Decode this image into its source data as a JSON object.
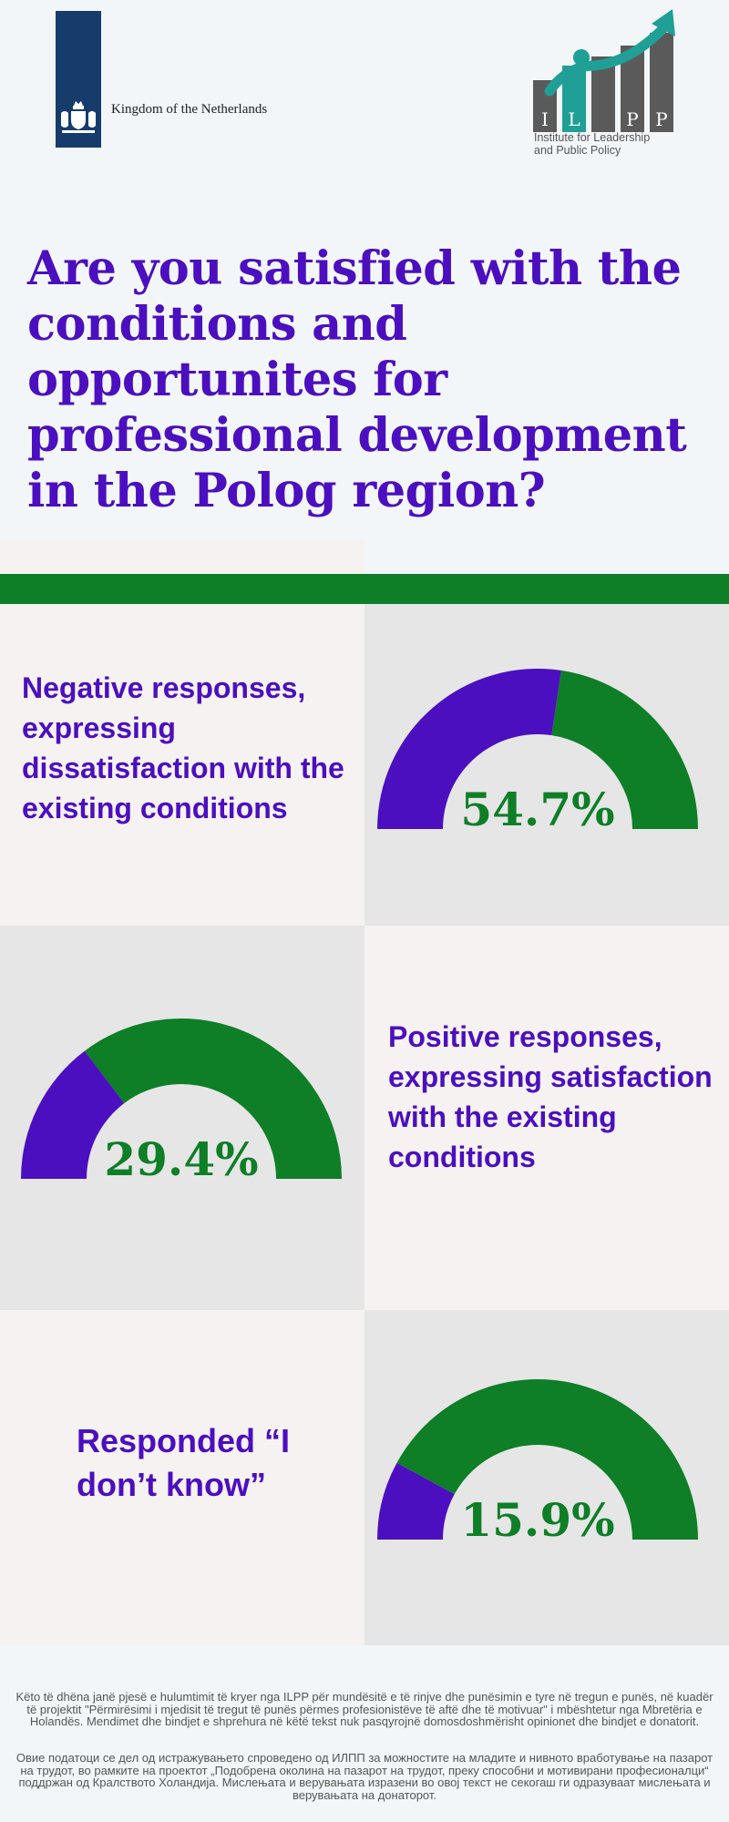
{
  "header": {
    "nl_name": "Kingdom of the Netherlands",
    "ilpp_letters": [
      "I",
      "L",
      "P",
      "P"
    ],
    "ilpp_subtitle_1": "Institute for Leadership",
    "ilpp_subtitle_2": "and Public Policy"
  },
  "title": "Are you satisfied with the conditions and opportunites for professional development in the Polog region?",
  "colors": {
    "title": "#4b0fbf",
    "negative_color": "#4b0fbf",
    "remainder_color": "#0e7e27",
    "green_bar": "#0e7e27"
  },
  "chart_data": [
    {
      "type": "gauge",
      "label": "Negative responses, expressing dissatisfaction with the existing conditions",
      "value": 54.7,
      "value_text": "54.7%",
      "max": 100
    },
    {
      "type": "gauge",
      "label": "Positive responses, expressing satisfaction with the existing conditions",
      "value": 29.4,
      "value_text": "29.4%",
      "max": 100
    },
    {
      "type": "gauge",
      "label": "Responded “I don’t know”",
      "value": 15.9,
      "value_text": "15.9%",
      "max": 100
    }
  ],
  "footer": {
    "albanian": "Këto të dhëna janë pjesë e hulumtimit të kryer nga ILPP për mundësitë e të rinjve dhe punësimin e tyre në tregun e punës, në kuadër të projektit \"Përmirësimi i mjedisit të tregut të punës përmes profesionistëve të aftë dhe të motivuar\" i mbështetur nga Mbretëria e Holandës. Mendimet dhe bindjet e shprehura në këtë tekst nuk pasqyrojnë domosdoshmërisht opinionet dhe bindjet e donatorit.",
    "macedonian": "Овие податоци се дел од истражувањето спроведено од ИЛПП за можностите на младите и нивното вработување на пазарот на трудот, во рамките на проектот „Подобрена околина на пазарот на трудот, преку способни и мотивирани професионалци“ поддржан од Кралството Холандија. Мислењата и верувањата изразени во овој текст не секогаш ги одразуваат мислењата и верувањата на донаторот."
  }
}
